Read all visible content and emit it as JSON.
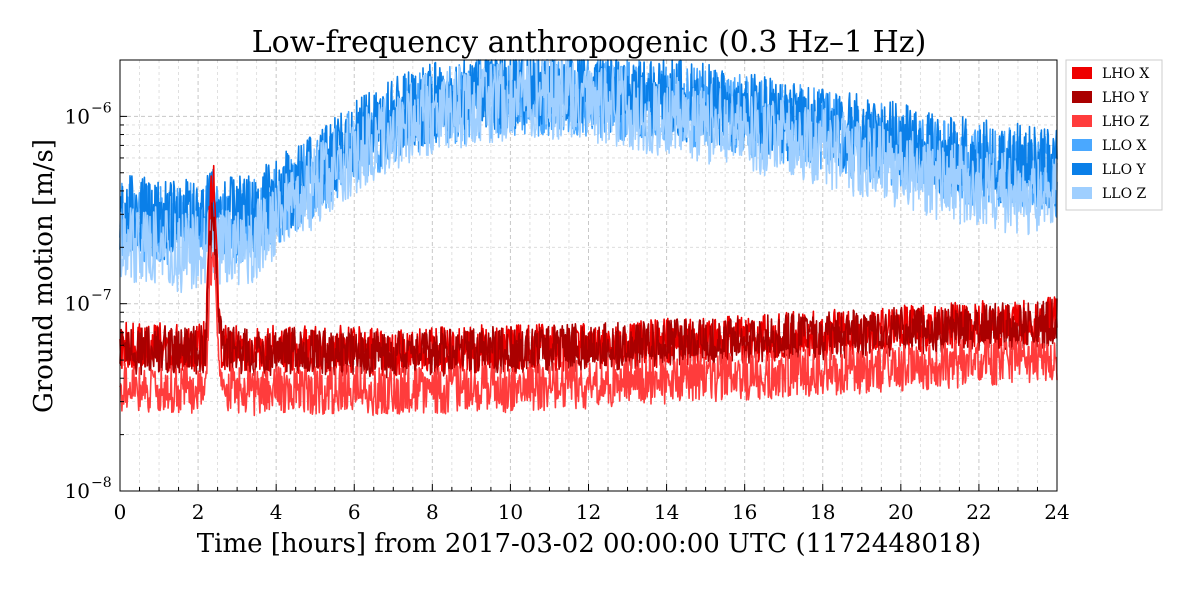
{
  "chart_data": {
    "type": "line",
    "title": "Low-frequency anthropogenic (0.3 Hz–1 Hz)",
    "xlabel": "Time [hours] from 2017-03-02 00:00:00 UTC (1172448018)",
    "ylabel": "Ground motion [m/s]",
    "xlim": [
      0,
      24
    ],
    "ylim": [
      1e-08,
      2e-06
    ],
    "yscale": "log",
    "x_ticks": [
      0,
      2,
      4,
      6,
      8,
      10,
      12,
      14,
      16,
      18,
      20,
      22,
      24
    ],
    "x_tick_labels": [
      "0",
      "2",
      "4",
      "6",
      "8",
      "10",
      "12",
      "14",
      "16",
      "18",
      "20",
      "22",
      "24"
    ],
    "y_ticks": [
      1e-08,
      1e-07,
      1e-06
    ],
    "y_tick_labels": [
      {
        "base": "10",
        "exp": "−8"
      },
      {
        "base": "10",
        "exp": "−7"
      },
      {
        "base": "10",
        "exp": "−6"
      }
    ],
    "grid": true,
    "legend_position": "outside-top-right",
    "x": [
      0,
      0.5,
      1,
      1.5,
      2,
      2.2,
      2.3,
      2.4,
      2.5,
      2.6,
      3,
      3.5,
      4,
      4.5,
      5,
      5.5,
      6,
      6.5,
      7,
      7.5,
      8,
      8.5,
      9,
      9.5,
      10,
      10.5,
      11,
      11.5,
      12,
      12.5,
      13,
      13.5,
      14,
      14.5,
      15,
      15.5,
      16,
      16.5,
      17,
      17.5,
      18,
      18.5,
      19,
      19.5,
      20,
      20.5,
      21,
      21.5,
      22,
      22.5,
      23,
      23.5,
      24
    ],
    "series": [
      {
        "name": "LHO X",
        "color": "#ee0000",
        "values": [
          6e-08,
          5.8e-08,
          5.9e-08,
          5.8e-08,
          5.8e-08,
          6e-08,
          3e-07,
          5.5e-07,
          1.2e-07,
          6e-08,
          5.7e-08,
          5.6e-08,
          5.7e-08,
          5.7e-08,
          5.6e-08,
          5.7e-08,
          5.7e-08,
          5.6e-08,
          5.5e-08,
          5.6e-08,
          5.6e-08,
          5.7e-08,
          5.8e-08,
          5.7e-08,
          5.7e-08,
          5.8e-08,
          5.8e-08,
          5.9e-08,
          5.9e-08,
          6e-08,
          6e-08,
          6.1e-08,
          6.2e-08,
          6.3e-08,
          6.3e-08,
          6.4e-08,
          6.5e-08,
          6.6e-08,
          6.7e-08,
          6.8e-08,
          6.9e-08,
          7e-08,
          7.1e-08,
          7.2e-08,
          7.3e-08,
          7.4e-08,
          7.5e-08,
          7.6e-08,
          7.7e-08,
          7.8e-08,
          7.9e-08,
          8e-08,
          8.1e-08
        ]
      },
      {
        "name": "LHO Y",
        "color": "#aa0000",
        "values": [
          5.7e-08,
          5.6e-08,
          5.7e-08,
          5.6e-08,
          5.6e-08,
          5.8e-08,
          2.2e-07,
          3e-07,
          1e-07,
          5.8e-08,
          5.5e-08,
          5.4e-08,
          5.5e-08,
          5.5e-08,
          5.4e-08,
          5.5e-08,
          5.5e-08,
          5.4e-08,
          5.4e-08,
          5.5e-08,
          5.5e-08,
          5.6e-08,
          5.6e-08,
          5.6e-08,
          5.6e-08,
          5.7e-08,
          5.7e-08,
          5.8e-08,
          5.8e-08,
          5.9e-08,
          5.9e-08,
          6e-08,
          6.1e-08,
          6.2e-08,
          6.2e-08,
          6.3e-08,
          6.4e-08,
          6.5e-08,
          6.6e-08,
          6.6e-08,
          6.7e-08,
          6.8e-08,
          6.9e-08,
          7e-08,
          7.1e-08,
          7.2e-08,
          7.3e-08,
          7.4e-08,
          7.5e-08,
          7.6e-08,
          7.7e-08,
          7.8e-08,
          7.9e-08
        ]
      },
      {
        "name": "LHO Z",
        "color": "#ff3c3c",
        "values": [
          3.6e-08,
          3.5e-08,
          3.5e-08,
          3.5e-08,
          3.5e-08,
          3.6e-08,
          1.5e-07,
          2e-07,
          6e-08,
          3.6e-08,
          3.5e-08,
          3.4e-08,
          3.5e-08,
          3.4e-08,
          3.4e-08,
          3.5e-08,
          3.5e-08,
          3.4e-08,
          3.4e-08,
          3.4e-08,
          3.4e-08,
          3.5e-08,
          3.5e-08,
          3.5e-08,
          3.5e-08,
          3.6e-08,
          3.6e-08,
          3.7e-08,
          3.7e-08,
          3.8e-08,
          3.8e-08,
          3.9e-08,
          3.9e-08,
          4e-08,
          4e-08,
          4.1e-08,
          4.1e-08,
          4.2e-08,
          4.2e-08,
          4.3e-08,
          4.3e-08,
          4.4e-08,
          4.4e-08,
          4.5e-08,
          4.5e-08,
          4.6e-08,
          4.7e-08,
          4.8e-08,
          4.8e-08,
          4.9e-08,
          5e-08,
          5e-08,
          5e-08
        ]
      },
      {
        "name": "LLO X",
        "color": "#4aa8ff",
        "values": [
          2.8e-07,
          2.7e-07,
          2.6e-07,
          2.6e-07,
          2.7e-07,
          2.7e-07,
          2.8e-07,
          3e-07,
          2.7e-07,
          2.6e-07,
          2.7e-07,
          2.9e-07,
          3.3e-07,
          4e-07,
          4.8e-07,
          5.8e-07,
          7e-07,
          8e-07,
          9e-07,
          1e-06,
          1.1e-06,
          1.15e-06,
          1.2e-06,
          1.25e-06,
          1.28e-06,
          1.3e-06,
          1.3e-06,
          1.3e-06,
          1.28e-06,
          1.25e-06,
          1.22e-06,
          1.2e-06,
          1.18e-06,
          1.15e-06,
          1.1e-06,
          1.05e-06,
          1e-06,
          9.6e-07,
          9.2e-07,
          8.9e-07,
          8.5e-07,
          8e-07,
          7.5e-07,
          7.1e-07,
          6.7e-07,
          6.3e-07,
          6e-07,
          5.7e-07,
          5.5e-07,
          5.3e-07,
          5.2e-07,
          5e-07,
          4.8e-07
        ]
      },
      {
        "name": "LLO Y",
        "color": "#0a7fe8",
        "values": [
          3e-07,
          2.9e-07,
          2.8e-07,
          2.8e-07,
          2.9e-07,
          2.9e-07,
          3e-07,
          3.2e-07,
          2.9e-07,
          2.8e-07,
          2.9e-07,
          3.1e-07,
          3.6e-07,
          4.3e-07,
          5.2e-07,
          6.2e-07,
          7.5e-07,
          8.6e-07,
          9.7e-07,
          1.08e-06,
          1.18e-06,
          1.24e-06,
          1.3e-06,
          1.35e-06,
          1.38e-06,
          1.4e-06,
          1.4e-06,
          1.4e-06,
          1.38e-06,
          1.35e-06,
          1.3e-06,
          1.28e-06,
          1.25e-06,
          1.2e-06,
          1.15e-06,
          1.1e-06,
          1.05e-06,
          1e-06,
          9.7e-07,
          9.3e-07,
          8.9e-07,
          8.4e-07,
          7.9e-07,
          7.5e-07,
          7.1e-07,
          6.7e-07,
          6.4e-07,
          6.1e-07,
          5.9e-07,
          5.7e-07,
          5.6e-07,
          5.5e-07,
          5.3e-07
        ]
      },
      {
        "name": "LLO Z",
        "color": "#9fcfff",
        "values": [
          2.2e-07,
          2.1e-07,
          2e-07,
          1.9e-07,
          1.9e-07,
          1.9e-07,
          2e-07,
          2.1e-07,
          1.9e-07,
          1.9e-07,
          2e-07,
          2.2e-07,
          2.7e-07,
          3.4e-07,
          4.2e-07,
          5.2e-07,
          6.3e-07,
          7.4e-07,
          8.5e-07,
          9.5e-07,
          1.05e-06,
          1.1e-06,
          1.15e-06,
          1.2e-06,
          1.22e-06,
          1.25e-06,
          1.25e-06,
          1.22e-06,
          1.2e-06,
          1.15e-06,
          1.1e-06,
          1.05e-06,
          1e-06,
          9.6e-07,
          9.2e-07,
          8.8e-07,
          8.4e-07,
          8e-07,
          7.6e-07,
          7.2e-07,
          6.8e-07,
          6.4e-07,
          6e-07,
          5.6e-07,
          5.2e-07,
          4.9e-07,
          4.6e-07,
          4.4e-07,
          4.2e-07,
          4e-07,
          3.9e-07,
          3.8e-07,
          3.6e-07
        ]
      }
    ]
  }
}
